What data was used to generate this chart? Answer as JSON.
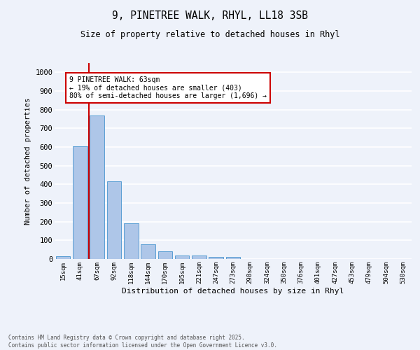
{
  "title_line1": "9, PINETREE WALK, RHYL, LL18 3SB",
  "title_line2": "Size of property relative to detached houses in Rhyl",
  "xlabel": "Distribution of detached houses by size in Rhyl",
  "ylabel": "Number of detached properties",
  "bar_labels": [
    "15sqm",
    "41sqm",
    "67sqm",
    "92sqm",
    "118sqm",
    "144sqm",
    "170sqm",
    "195sqm",
    "221sqm",
    "247sqm",
    "273sqm",
    "298sqm",
    "324sqm",
    "350sqm",
    "376sqm",
    "401sqm",
    "427sqm",
    "453sqm",
    "479sqm",
    "504sqm",
    "530sqm"
  ],
  "bar_values": [
    15,
    605,
    770,
    415,
    193,
    77,
    40,
    20,
    17,
    12,
    13,
    0,
    0,
    0,
    0,
    0,
    0,
    0,
    0,
    0,
    0
  ],
  "bar_color": "#aec6e8",
  "bar_edge_color": "#5a9fd4",
  "annotation_text": "9 PINETREE WALK: 63sqm\n← 19% of detached houses are smaller (403)\n80% of semi-detached houses are larger (1,696) →",
  "annotation_box_color": "#ffffff",
  "annotation_box_edge": "#cc0000",
  "vline_color": "#cc0000",
  "ylim": [
    0,
    1050
  ],
  "yticks": [
    0,
    100,
    200,
    300,
    400,
    500,
    600,
    700,
    800,
    900,
    1000
  ],
  "background_color": "#eef2fa",
  "grid_color": "#ffffff",
  "footer_line1": "Contains HM Land Registry data © Crown copyright and database right 2025.",
  "footer_line2": "Contains public sector information licensed under the Open Government Licence v3.0."
}
